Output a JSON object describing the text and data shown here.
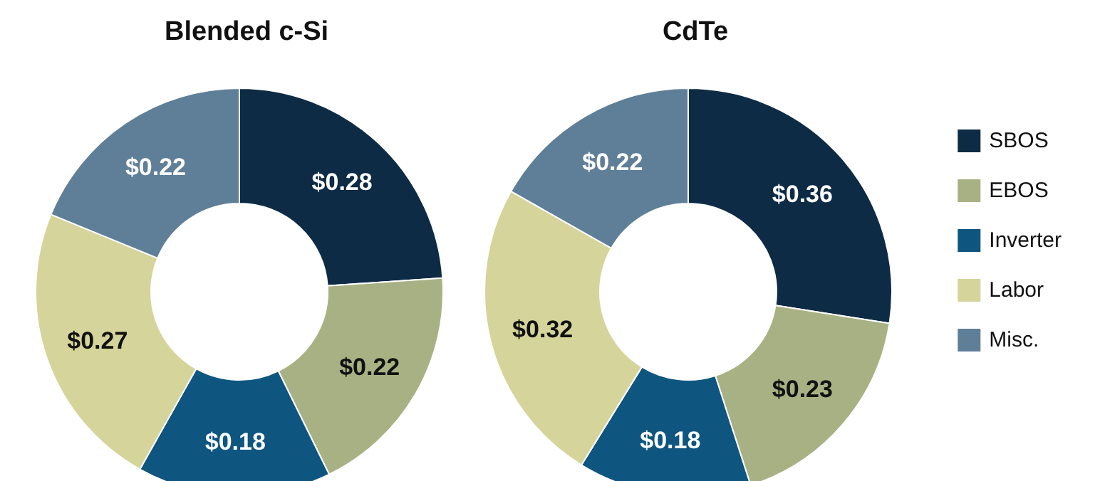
{
  "chart_data": [
    {
      "type": "donut",
      "title": "Blended c-Si",
      "categories": [
        null,
        null,
        null,
        null,
        null
      ],
      "values": [
        0.28,
        0.22,
        0.18,
        0.27,
        0.22
      ],
      "value_labels": [
        "$0.28",
        "$0.22",
        "$0.18",
        "$0.27",
        "$0.22"
      ],
      "colors": [
        "#0d2b45",
        "#a8b183",
        "#0e5580",
        "#d5d49a",
        "#5f7f98"
      ],
      "legend": false
    },
    {
      "type": "donut",
      "title": "CdTe",
      "categories": [
        "SBOS",
        "EBOS",
        "Inverter",
        "Labor",
        "Misc."
      ],
      "values": [
        0.36,
        0.23,
        0.18,
        0.32,
        0.22
      ],
      "value_labels": [
        "$0.36",
        "$0.23",
        "$0.18",
        "$0.32",
        "$0.22"
      ],
      "colors": [
        "#0d2b45",
        "#a8b183",
        "#0e5580",
        "#d5d49a",
        "#5f7f98"
      ],
      "legend": "right"
    }
  ]
}
